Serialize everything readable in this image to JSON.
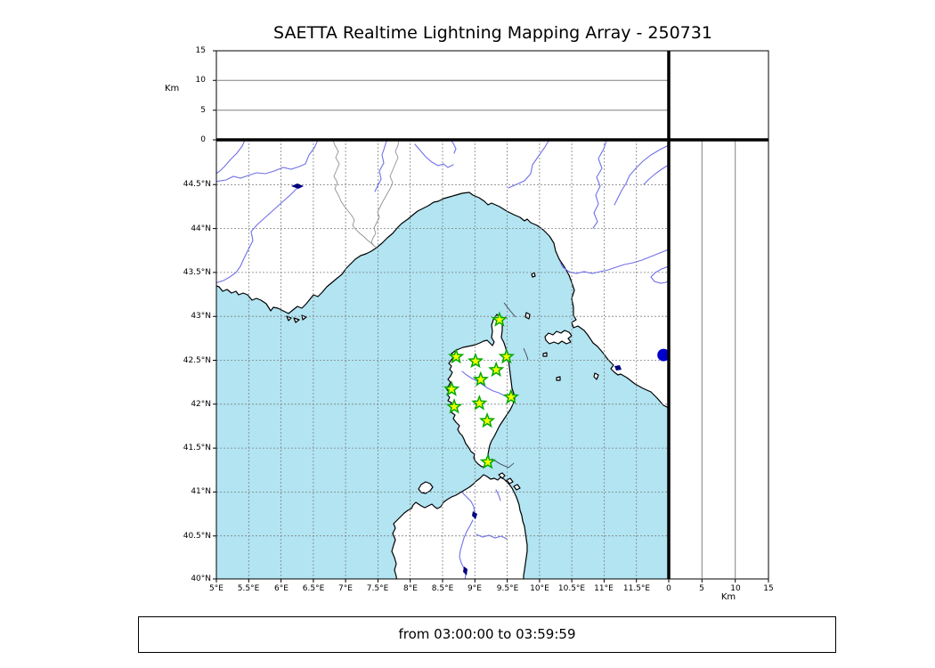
{
  "title": "SAETTA Realtime Lightning Mapping Array - 250731",
  "time_window": "from 03:00:00 to 03:59:59",
  "axes": {
    "alt_label_left": "Km",
    "alt_label_bottom": "Km",
    "alt_ticks": [
      "0",
      "5",
      "10",
      "15"
    ],
    "lat_ticks": [
      "44.5°N",
      "44°N",
      "43.5°N",
      "43°N",
      "42.5°N",
      "42°N",
      "41.5°N",
      "41°N",
      "40.5°N",
      "40°N"
    ],
    "lon_ticks": [
      "5°E",
      "5.5°E",
      "6°E",
      "6.5°E",
      "7°E",
      "7.5°E",
      "8°E",
      "8.5°E",
      "9°E",
      "9.5°E",
      "10°E",
      "10.5°E",
      "11°E",
      "11.5°E"
    ]
  },
  "chart_data": {
    "type": "scatter",
    "title": "SAETTA Realtime Lightning Mapping Array - 250731",
    "subtitle": "from 03:00:00 to 03:59:59",
    "map_extent": {
      "lon_min": 5,
      "lon_max": 12,
      "lat_min": 40,
      "lat_max": 45
    },
    "grid_step_deg": 0.5,
    "altitude_axis": {
      "label": "Km",
      "ticks": [
        0,
        5,
        10,
        15
      ],
      "range": [
        0,
        15
      ]
    },
    "lon_ticks_deg": [
      5,
      5.5,
      6,
      6.5,
      7,
      7.5,
      8,
      8.5,
      9,
      9.5,
      10,
      10.5,
      11,
      11.5
    ],
    "lat_ticks_deg": [
      44.5,
      44,
      43.5,
      43,
      42.5,
      42,
      41.5,
      41,
      40.5,
      40
    ],
    "stations": [
      {
        "lon": 9.38,
        "lat": 42.95
      },
      {
        "lon": 8.71,
        "lat": 42.53
      },
      {
        "lon": 9.01,
        "lat": 42.48
      },
      {
        "lon": 9.49,
        "lat": 42.53
      },
      {
        "lon": 9.33,
        "lat": 42.38
      },
      {
        "lon": 9.09,
        "lat": 42.27
      },
      {
        "lon": 8.64,
        "lat": 42.16
      },
      {
        "lon": 9.56,
        "lat": 42.07
      },
      {
        "lon": 9.07,
        "lat": 42.0
      },
      {
        "lon": 8.68,
        "lat": 41.96
      },
      {
        "lon": 9.19,
        "lat": 41.8
      },
      {
        "lon": 9.2,
        "lat": 41.33
      }
    ],
    "source_point": {
      "lon": 11.92,
      "lat": 42.55
    },
    "style": {
      "sea": "#b2e4f2",
      "land": "#ffffff",
      "coast": "#000000",
      "river": "#7070e8",
      "country_border": "#909090",
      "grid": "#808080",
      "lake": "#000080",
      "station_fill": "#f0ff00",
      "station_edge": "#00aa00",
      "source_fill": "#0000cc"
    }
  }
}
